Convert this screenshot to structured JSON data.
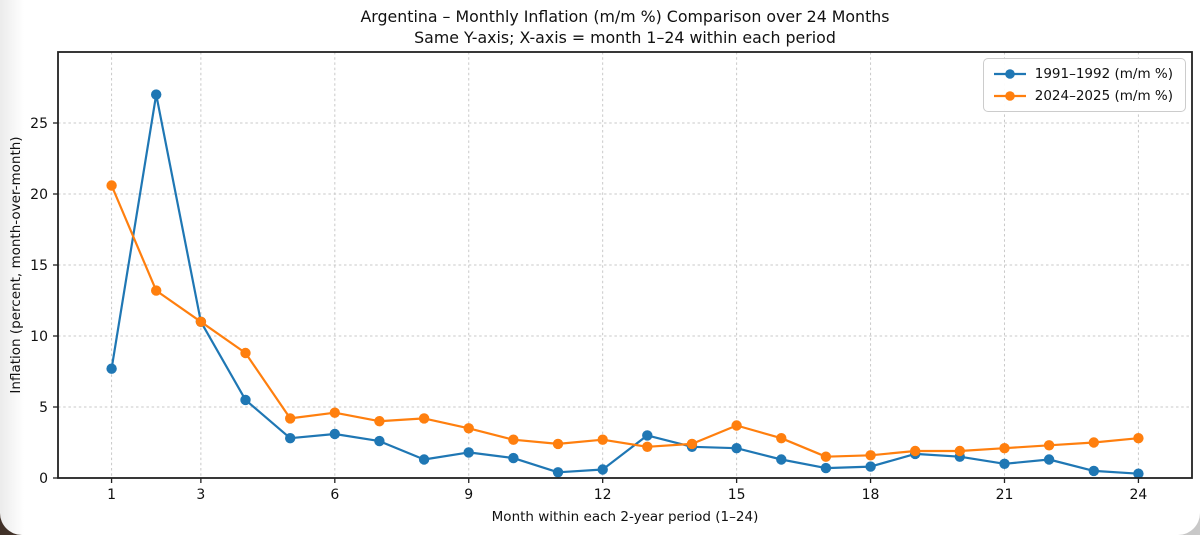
{
  "chart_data": {
    "type": "line",
    "title": "Argentina – Monthly Inflation (m/m %) Comparison over 24 Months",
    "subtitle": "Same Y-axis; X-axis = month 1–24 within each period",
    "xlabel": "Month within each 2-year period (1–24)",
    "ylabel": "Inflation (percent, month-over-month)",
    "x": [
      1,
      2,
      3,
      4,
      5,
      6,
      7,
      8,
      9,
      10,
      11,
      12,
      13,
      14,
      15,
      16,
      17,
      18,
      19,
      20,
      21,
      22,
      23,
      24
    ],
    "xticks": [
      1,
      3,
      6,
      9,
      12,
      15,
      18,
      21,
      24
    ],
    "yticks": [
      0,
      5,
      10,
      15,
      20,
      25
    ],
    "xlim": [
      -0.2,
      25.2
    ],
    "ylim": [
      0,
      30
    ],
    "grid": true,
    "legend_position": "upper-right",
    "series": [
      {
        "name": "1991–1992 (m/m %)",
        "color": "#1f77b4",
        "values": [
          7.7,
          27.0,
          11.0,
          5.5,
          2.8,
          3.1,
          2.6,
          1.3,
          1.8,
          1.4,
          0.4,
          0.6,
          3.0,
          2.2,
          2.1,
          1.3,
          0.7,
          0.8,
          1.7,
          1.5,
          1.0,
          1.3,
          0.5,
          0.3
        ]
      },
      {
        "name": "2024–2025 (m/m %)",
        "color": "#ff7f0e",
        "values": [
          20.6,
          13.2,
          11.0,
          8.8,
          4.2,
          4.6,
          4.0,
          4.2,
          3.5,
          2.7,
          2.4,
          2.7,
          2.2,
          2.4,
          3.7,
          2.8,
          1.5,
          1.6,
          1.9,
          1.9,
          2.1,
          2.3,
          2.5,
          2.8
        ]
      }
    ]
  }
}
